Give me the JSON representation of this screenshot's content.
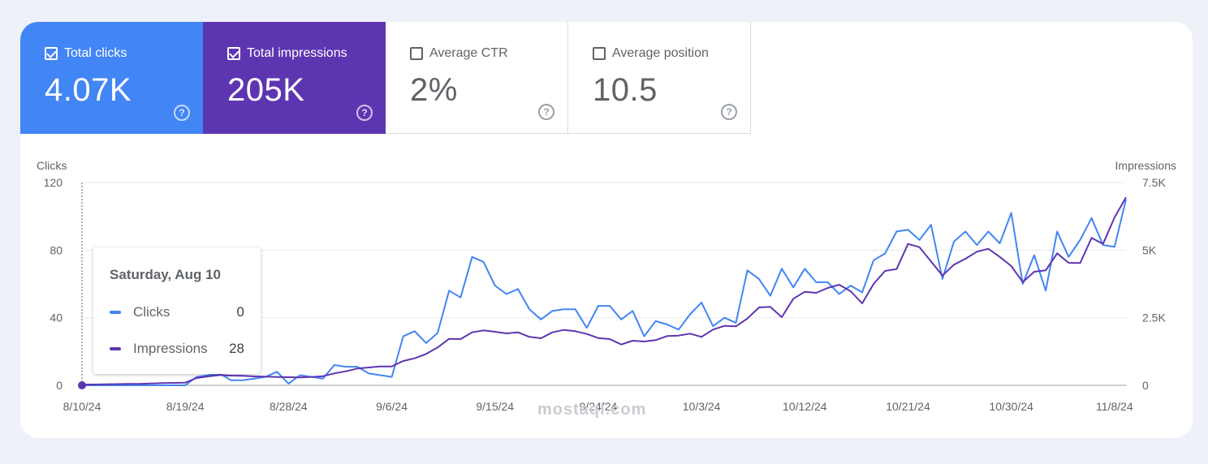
{
  "metrics": [
    {
      "label": "Total clicks",
      "value": "4.07K",
      "checked": true,
      "color": "#4285f4"
    },
    {
      "label": "Total impressions",
      "value": "205K",
      "checked": true,
      "color": "#5e35b1"
    },
    {
      "label": "Average CTR",
      "value": "2%",
      "checked": false
    },
    {
      "label": "Average position",
      "value": "10.5",
      "checked": false
    }
  ],
  "help_glyph": "?",
  "tooltip": {
    "date": "Saturday, Aug 10",
    "rows": [
      {
        "name": "Clicks",
        "value": "0"
      },
      {
        "name": "Impressions",
        "value": "28"
      }
    ]
  },
  "watermark": "mostaql.com",
  "chart_data": {
    "type": "line",
    "left_axis_title": "Clicks",
    "right_axis_title": "Impressions",
    "left_ticks": [
      "0",
      "40",
      "80",
      "120"
    ],
    "right_ticks": [
      "0",
      "2.5K",
      "5K",
      "7.5K"
    ],
    "ylim_left": [
      0,
      120
    ],
    "ylim_right": [
      0,
      7500
    ],
    "x_tick_labels": [
      "8/10/24",
      "8/19/24",
      "8/28/24",
      "9/6/24",
      "9/15/24",
      "9/24/24",
      "10/3/24",
      "10/12/24",
      "10/21/24",
      "10/30/24",
      "11/8/24"
    ],
    "x_tick_indices": [
      0,
      9,
      18,
      27,
      36,
      45,
      54,
      63,
      72,
      81,
      90
    ],
    "grid": true,
    "series": [
      {
        "name": "Clicks",
        "axis": "left",
        "color": "#4285f4",
        "values": [
          0,
          0,
          0,
          0,
          0,
          0,
          0,
          0,
          0,
          0,
          5,
          6,
          7,
          3,
          3,
          4,
          5,
          8,
          1,
          6,
          5,
          4,
          12,
          11,
          11,
          7,
          6,
          5,
          29,
          32,
          25,
          31,
          56,
          52,
          76,
          73,
          59,
          54,
          57,
          45,
          39,
          44,
          45,
          45,
          34,
          47,
          47,
          39,
          44,
          29,
          38,
          36,
          33,
          42,
          49,
          35,
          40,
          37,
          68,
          63,
          53,
          69,
          58,
          69,
          61,
          61,
          54,
          59,
          55,
          74,
          78,
          91,
          92,
          86,
          95,
          63,
          85,
          91,
          83,
          91,
          84,
          102,
          60,
          77,
          56,
          91,
          76,
          86,
          99,
          83,
          82,
          110
        ]
      },
      {
        "name": "Impressions",
        "axis": "right",
        "color": "#5e35b1",
        "values": [
          28,
          30,
          40,
          45,
          50,
          55,
          70,
          80,
          90,
          100,
          270,
          330,
          380,
          360,
          350,
          330,
          320,
          310,
          300,
          290,
          310,
          340,
          440,
          520,
          620,
          660,
          700,
          700,
          900,
          1000,
          1160,
          1400,
          1720,
          1710,
          1960,
          2030,
          1980,
          1920,
          1960,
          1790,
          1740,
          1960,
          2050,
          2000,
          1900,
          1750,
          1710,
          1510,
          1650,
          1620,
          1670,
          1820,
          1840,
          1910,
          1790,
          2060,
          2200,
          2180,
          2470,
          2880,
          2900,
          2520,
          3200,
          3460,
          3420,
          3600,
          3720,
          3480,
          3030,
          3750,
          4230,
          4300,
          5230,
          5110,
          4580,
          4060,
          4460,
          4680,
          4940,
          5050,
          4750,
          4410,
          3820,
          4200,
          4250,
          4880,
          4530,
          4520,
          5450,
          5230,
          6210,
          6950
        ]
      }
    ]
  }
}
